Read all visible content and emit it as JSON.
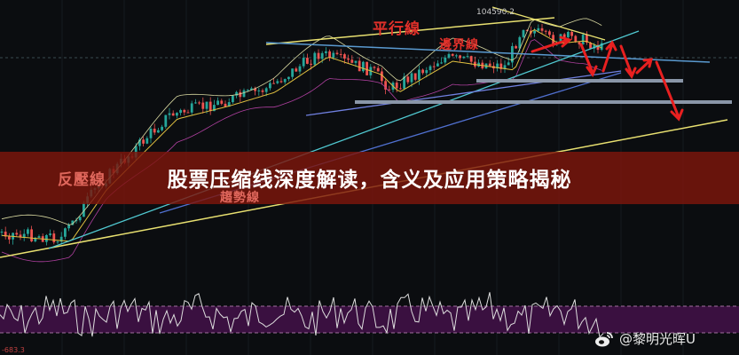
{
  "title": "股票压缩线深度解读，含义及应用策略揭秘",
  "annotations": {
    "parallel_line": "平行線",
    "boundary_line": "邊界線",
    "resistance_line": "反壓線",
    "trend_line": "趨勢線"
  },
  "price_label": "104590.2",
  "oscillator_label": "-683.3",
  "watermark": {
    "icon": "weibo-icon",
    "text": "@黎明光晖U"
  },
  "colors": {
    "background": "#0b0d10",
    "banner": "#7d160c",
    "up": "#26a69a",
    "down": "#ef5350",
    "annotation": "#e0302a",
    "oscillator_band": "#3a1040"
  }
}
